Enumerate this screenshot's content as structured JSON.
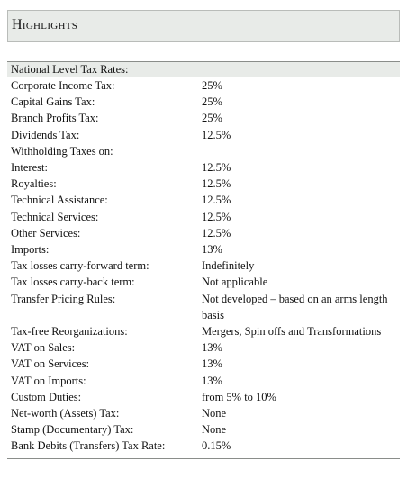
{
  "header": {
    "title": "Highlights"
  },
  "section": {
    "title": "National Level Tax Rates:"
  },
  "rows": [
    {
      "label": "Corporate Income Tax:",
      "value": "25%"
    },
    {
      "label": "Capital Gains Tax:",
      "value": "25%"
    },
    {
      "label": "Branch Profits Tax:",
      "value": "25%"
    },
    {
      "label": "Dividends Tax:",
      "value": "12.5%"
    },
    {
      "label": "Withholding Taxes on:",
      "value": ""
    },
    {
      "label": "Interest:",
      "value": "12.5%"
    },
    {
      "label": "Royalties:",
      "value": "12.5%"
    },
    {
      "label": "Technical Assistance:",
      "value": "12.5%"
    },
    {
      "label": "Technical Services:",
      "value": "12.5%"
    },
    {
      "label": "Other Services:",
      "value": "12.5%"
    },
    {
      "label": "Imports:",
      "value": "13%"
    },
    {
      "label": "Tax losses carry-forward term:",
      "value": "Indefinitely"
    },
    {
      "label": "Tax losses carry-back term:",
      "value": "Not applicable"
    },
    {
      "label": "Transfer Pricing Rules:",
      "value": "Not developed – based on an arms length basis"
    },
    {
      "label": "Tax-free Reorganizations:",
      "value": "Mergers, Spin offs and Transformations"
    },
    {
      "label": "VAT on Sales:",
      "value": "13%"
    },
    {
      "label": "VAT on Services:",
      "value": "13%"
    },
    {
      "label": "VAT on Imports:",
      "value": "13%"
    },
    {
      "label": "Custom Duties:",
      "value": "from 5% to 10%"
    },
    {
      "label": "Net-worth (Assets) Tax:",
      "value": "None"
    },
    {
      "label": "Stamp (Documentary) Tax:",
      "value": "None"
    },
    {
      "label": "Bank Debits (Transfers) Tax Rate:",
      "value": "0.15%"
    }
  ]
}
